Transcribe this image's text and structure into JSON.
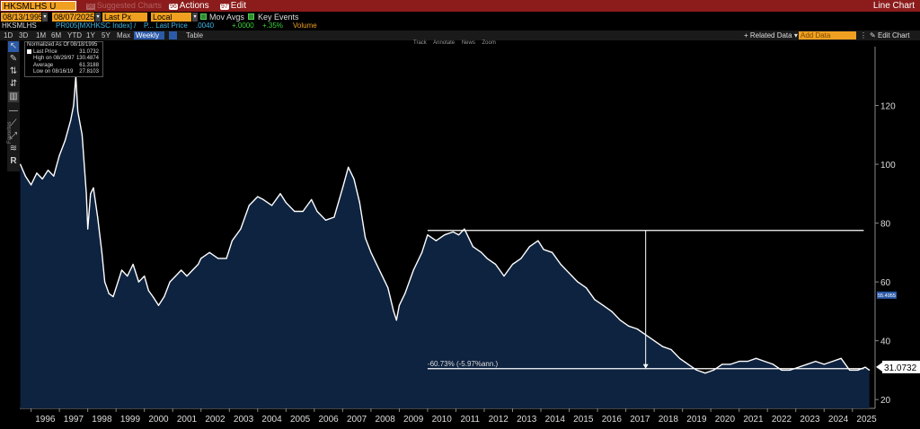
{
  "header": {
    "ticker": "HKSMLHS U Index",
    "suggested_num": "98",
    "suggested": "Suggested Charts",
    "actions_num": "96",
    "actions": "Actions",
    "edit_num": "97",
    "edit": "Edit",
    "title": "Line Chart"
  },
  "fields": {
    "start_date": "08/13/1995",
    "end_date": "08/07/2025",
    "price_type": "Last Px",
    "currency": "Local CCY",
    "mov_avgs": "Mov Avgs",
    "key_events": "Key Events"
  },
  "info": {
    "ticker": "HKSMLHS",
    "pr": "PR005[MXHKSC Index] /",
    "lp": "P... Last Price",
    "lp_val": ".0040",
    "chg": "+.0000",
    "pct": "+.35%",
    "volume": "Volume"
  },
  "ranges": [
    "1D",
    "3D",
    "1M",
    "6M",
    "YTD",
    "1Y",
    "5Y",
    "Max"
  ],
  "period": "Weekly",
  "table": "Table",
  "related": "Related Data",
  "add_data": "Add Data",
  "edit_chart": "Edit Chart",
  "annotate_tools": [
    "Track",
    "Annotate",
    "News",
    "Zoom"
  ],
  "toolbar_label": "Favorites",
  "legend": {
    "header": "Normalized As Of 08/18/1995",
    "rows": [
      {
        "label": "Last Price",
        "value": "31.0732"
      },
      {
        "label": "High on 08/29/97",
        "value": "130.4874"
      },
      {
        "label": "Average",
        "value": "61.3188"
      },
      {
        "label": "Low on 08/16/19",
        "value": "27.8103"
      }
    ]
  },
  "colors": {
    "header_bg": "#8c1c1c",
    "field_bg": "#f0a020",
    "area_fill": "#0e2340",
    "line": "#ffffff"
  },
  "chart_data": {
    "type": "area",
    "title": "",
    "xlabel": "",
    "ylabel": "",
    "x_ticks": [
      "1996",
      "1997",
      "1998",
      "1999",
      "2000",
      "2001",
      "2002",
      "2003",
      "2004",
      "2005",
      "2006",
      "2007",
      "2008",
      "2009",
      "2010",
      "2011",
      "2012",
      "2013",
      "2014",
      "2015",
      "2016",
      "2017",
      "2018",
      "2019",
      "2020",
      "2021",
      "2022",
      "2023",
      "2024",
      "2025"
    ],
    "y_ticks": [
      20,
      40,
      60,
      80,
      100,
      120
    ],
    "ylim": [
      17,
      140
    ],
    "xlim": [
      1995.6,
      2025.8
    ],
    "last_value_label": "31.0732",
    "right_marker": "55.4955",
    "annotation": "-60.73% (-5.97%ann.)",
    "series": [
      {
        "x": [
          1995.62,
          1995.8,
          1996.0,
          1996.2,
          1996.4,
          1996.6,
          1996.8,
          1997.0,
          1997.2,
          1997.4,
          1997.5,
          1997.58,
          1997.65,
          1997.8,
          1997.95,
          1998.0,
          1998.1,
          1998.2,
          1998.35,
          1998.5,
          1998.6,
          1998.75,
          1998.9,
          1999.0,
          1999.2,
          1999.4,
          1999.6,
          1999.8,
          2000.0,
          2000.15,
          2000.3,
          2000.5,
          2000.7,
          2000.9,
          2001.1,
          2001.3,
          2001.5,
          2001.7,
          2001.9,
          2002.0,
          2002.3,
          2002.6,
          2002.9,
          2003.1,
          2003.4,
          2003.7,
          2004.0,
          2004.2,
          2004.5,
          2004.8,
          2005.0,
          2005.3,
          2005.6,
          2005.9,
          2006.1,
          2006.4,
          2006.7,
          2007.0,
          2007.2,
          2007.4,
          2007.6,
          2007.8,
          2008.0,
          2008.2,
          2008.4,
          2008.6,
          2008.8,
          2008.9,
          2009.0,
          2009.2,
          2009.5,
          2009.8,
          2010.0,
          2010.3,
          2010.6,
          2010.9,
          2011.1,
          2011.3,
          2011.6,
          2011.9,
          2012.1,
          2012.4,
          2012.7,
          2013.0,
          2013.3,
          2013.6,
          2013.9,
          2014.1,
          2014.4,
          2014.7,
          2015.0,
          2015.3,
          2015.6,
          2015.9,
          2016.2,
          2016.5,
          2016.8,
          2017.1,
          2017.4,
          2017.7,
          2018.0,
          2018.3,
          2018.6,
          2018.9,
          2019.2,
          2019.5,
          2019.8,
          2020.1,
          2020.4,
          2020.7,
          2021.0,
          2021.3,
          2021.6,
          2021.9,
          2022.2,
          2022.5,
          2022.8,
          2023.1,
          2023.4,
          2023.7,
          2024.0,
          2024.3,
          2024.6,
          2024.9,
          2025.2,
          2025.45,
          2025.6
        ],
        "y": [
          100,
          96,
          93,
          97,
          95,
          98,
          96,
          103,
          108,
          115,
          120,
          130,
          118,
          110,
          90,
          78,
          90,
          92,
          82,
          70,
          60,
          56,
          55,
          58,
          64,
          62,
          66,
          60,
          62,
          57,
          55,
          52,
          55,
          60,
          62,
          64,
          62,
          64,
          66,
          68,
          70,
          68,
          68,
          74,
          78,
          86,
          89,
          88,
          86,
          90,
          87,
          84,
          84,
          88,
          84,
          81,
          82,
          92,
          99,
          95,
          87,
          75,
          70,
          66,
          62,
          58,
          50,
          47,
          52,
          56,
          64,
          70,
          76,
          74,
          76,
          77,
          76,
          78,
          72,
          70,
          68,
          66,
          62,
          66,
          68,
          72,
          74,
          71,
          70,
          66,
          63,
          60,
          58,
          54,
          52,
          50,
          47,
          45,
          44,
          42,
          40,
          38,
          37,
          34,
          32,
          30,
          29,
          30,
          32,
          32,
          33,
          33,
          34,
          33,
          32,
          30,
          30,
          31,
          32,
          33,
          32,
          33,
          34,
          30,
          30,
          31,
          30
        ]
      }
    ]
  }
}
